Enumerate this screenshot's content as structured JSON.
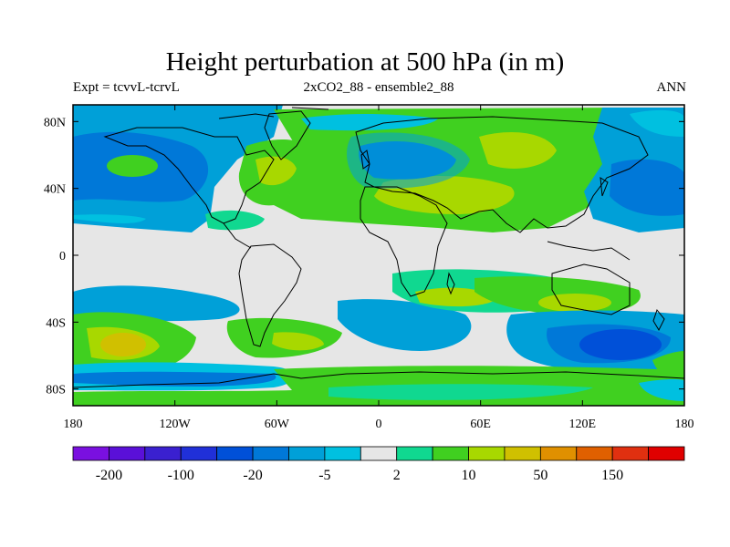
{
  "header": {
    "title": "Height perturbation at 500 hPa (in m)",
    "left": "Expt = tcvvL-tcrvL",
    "center": "2xCO2_88 - ensemble2_88",
    "right": "ANN"
  },
  "map": {
    "lat_labels": [
      {
        "lat": 80,
        "label": "80N"
      },
      {
        "lat": 40,
        "label": "40N"
      },
      {
        "lat": 0,
        "label": "0"
      },
      {
        "lat": -40,
        "label": "40S"
      },
      {
        "lat": -80,
        "label": "80S"
      }
    ],
    "lon_labels": [
      {
        "lon": -180,
        "label": "180"
      },
      {
        "lon": -120,
        "label": "120W"
      },
      {
        "lon": -60,
        "label": "60W"
      },
      {
        "lon": 0,
        "label": "0"
      },
      {
        "lon": 60,
        "label": "60E"
      },
      {
        "lon": 120,
        "label": "120E"
      },
      {
        "lon": 180,
        "label": "180"
      }
    ],
    "lon_range": [
      -180,
      180
    ],
    "lat_range": [
      -90,
      90
    ],
    "background_color": "#e6e6e6"
  },
  "colorbar": {
    "colors": [
      "#7a10e0",
      "#5a10d8",
      "#3a20d0",
      "#2030d8",
      "#0050d8",
      "#0078d8",
      "#00a0d8",
      "#00c0e0",
      "#e6e6e6",
      "#10d890",
      "#40d020",
      "#a8d800",
      "#d0c000",
      "#e09000",
      "#e06000",
      "#e03010",
      "#e00000"
    ],
    "labels": [
      "-200",
      "-100",
      "-20",
      "-5",
      "2",
      "10",
      "50",
      "150"
    ]
  }
}
